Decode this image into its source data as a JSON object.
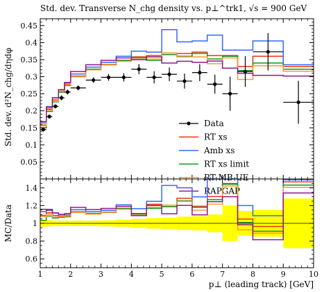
{
  "title": "Std. dev. Transverse N_chg density vs. p⊥^trk1, √s = 900 GeV",
  "chart_data": [
    {
      "type": "line",
      "panel": "main",
      "ylabel": "Std. dev. d²N_chg/dηdφ",
      "xlim": [
        1,
        10
      ],
      "ylim": [
        0,
        0.47
      ],
      "yticks": [
        0.05,
        0.1,
        0.15,
        0.2,
        0.25,
        0.3,
        0.35,
        0.4,
        0.45
      ],
      "tick_labels": [
        "0.05",
        "0.1",
        "0.15",
        "0.2",
        "0.25",
        "0.3",
        "0.35",
        "0.4",
        "0.45"
      ],
      "legend_placement": "center-right",
      "data": {
        "name": "Data",
        "points": [
          {
            "x": 1.1,
            "y": 0.145,
            "yerr": 0.006
          },
          {
            "x": 1.3,
            "y": 0.183,
            "yerr": 0.006
          },
          {
            "x": 1.5,
            "y": 0.213,
            "yerr": 0.006
          },
          {
            "x": 1.7,
            "y": 0.238,
            "yerr": 0.007
          },
          {
            "x": 1.9,
            "y": 0.255,
            "yerr": 0.007
          },
          {
            "x": 2.25,
            "y": 0.267,
            "yerr": 0.007
          },
          {
            "x": 2.75,
            "y": 0.29,
            "yerr": 0.008
          },
          {
            "x": 3.25,
            "y": 0.298,
            "yerr": 0.01
          },
          {
            "x": 3.75,
            "y": 0.298,
            "yerr": 0.012
          },
          {
            "x": 4.25,
            "y": 0.322,
            "yerr": 0.015
          },
          {
            "x": 4.75,
            "y": 0.298,
            "yerr": 0.018
          },
          {
            "x": 5.25,
            "y": 0.307,
            "yerr": 0.02
          },
          {
            "x": 5.75,
            "y": 0.287,
            "yerr": 0.022
          },
          {
            "x": 6.25,
            "y": 0.312,
            "yerr": 0.025
          },
          {
            "x": 6.75,
            "y": 0.278,
            "yerr": 0.028
          },
          {
            "x": 7.25,
            "y": 0.25,
            "yerr": 0.05
          },
          {
            "x": 7.75,
            "y": 0.315,
            "yerr": 0.045
          },
          {
            "x": 8.5,
            "y": 0.373,
            "yerr": 0.055
          },
          {
            "x": 9.5,
            "y": 0.225,
            "yerr": 0.063
          }
        ]
      },
      "bin_edges": [
        1.0,
        1.2,
        1.4,
        1.6,
        1.8,
        2.0,
        2.5,
        3.0,
        3.5,
        4.0,
        4.5,
        5.0,
        5.5,
        6.0,
        6.5,
        7.0,
        7.5,
        8.0,
        9.0,
        10.0
      ],
      "series": [
        {
          "name": "RT xs",
          "color": "#ee3311",
          "values": [
            0.158,
            0.205,
            0.232,
            0.258,
            0.278,
            0.302,
            0.322,
            0.335,
            0.348,
            0.358,
            0.362,
            0.365,
            0.368,
            0.372,
            0.362,
            0.362,
            0.33,
            0.36,
            0.33
          ]
        },
        {
          "name": "Amb xs",
          "color": "#3366ff",
          "values": [
            0.164,
            0.212,
            0.238,
            0.262,
            0.282,
            0.308,
            0.328,
            0.342,
            0.36,
            0.375,
            0.372,
            0.438,
            0.402,
            0.405,
            0.422,
            0.378,
            0.378,
            0.405,
            0.335
          ]
        },
        {
          "name": "RT xs limit",
          "color": "#109618",
          "values": [
            0.15,
            0.198,
            0.226,
            0.254,
            0.274,
            0.3,
            0.322,
            0.336,
            0.348,
            0.356,
            0.348,
            0.365,
            0.36,
            0.368,
            0.352,
            0.36,
            0.318,
            0.34,
            0.322
          ]
        },
        {
          "name": "RT MB UE",
          "color": "#ff9933",
          "values": [
            0.156,
            0.202,
            0.228,
            0.256,
            0.276,
            0.3,
            0.32,
            0.336,
            0.345,
            0.352,
            0.352,
            0.37,
            0.358,
            0.358,
            0.338,
            0.355,
            0.292,
            0.332,
            0.316
          ]
        },
        {
          "name": "RAPGAP",
          "color": "#8b1a89",
          "values": [
            0.168,
            0.21,
            0.238,
            0.262,
            0.283,
            0.315,
            0.335,
            0.348,
            0.355,
            0.35,
            0.358,
            0.34,
            0.345,
            0.342,
            0.346,
            0.325,
            0.31,
            0.304,
            0.302
          ]
        }
      ]
    },
    {
      "type": "line",
      "panel": "ratio",
      "xlabel": "p⊥ (leading track) [GeV]",
      "ylabel": "MC/Data",
      "xlim": [
        1,
        10
      ],
      "ylim": [
        0.5,
        1.5
      ],
      "xticks": [
        1,
        2,
        3,
        4,
        5,
        6,
        7,
        8,
        9,
        10
      ],
      "yticks": [
        0.6,
        0.8,
        1.0,
        1.2,
        1.4
      ],
      "tick_labels": [
        "0.6",
        "0.8",
        "1",
        "1.2",
        "1.4"
      ],
      "x_tick_labels": [
        "1",
        "2",
        "3",
        "4",
        "5",
        "6",
        "7",
        "8",
        "9",
        "10"
      ],
      "band_color": "#ffff00",
      "band_halfwidth": [
        0.04,
        0.035,
        0.03,
        0.03,
        0.03,
        0.03,
        0.03,
        0.035,
        0.04,
        0.05,
        0.06,
        0.065,
        0.075,
        0.08,
        0.1,
        0.2,
        0.14,
        0.15,
        0.28
      ]
    }
  ]
}
